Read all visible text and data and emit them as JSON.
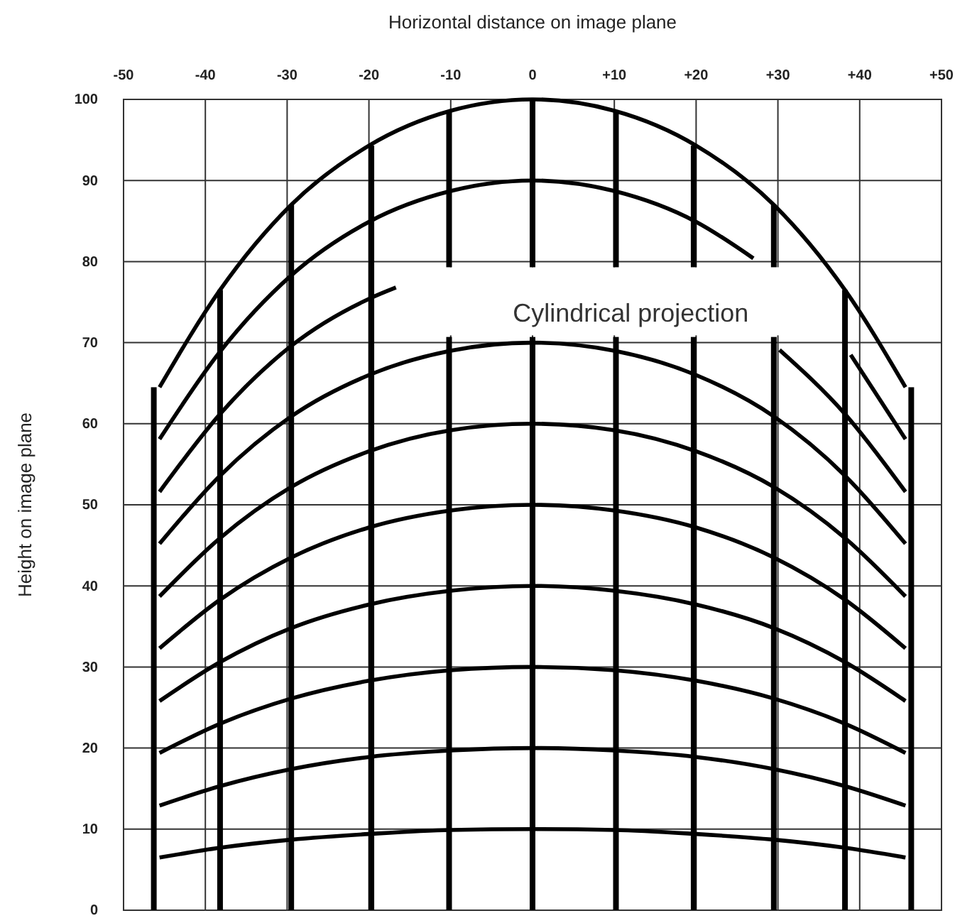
{
  "chart_data": {
    "type": "line",
    "xlabel": "Horizontal distance on image plane",
    "ylabel": "Height on image plane",
    "annotations": [
      "Cylindrical projection"
    ],
    "xlim": [
      -50,
      50
    ],
    "ylim": [
      0,
      100
    ],
    "xticks": [
      -50,
      -40,
      -30,
      -20,
      -10,
      0,
      {
        "value": 10,
        "label": "+10"
      },
      {
        "value": 20,
        "label": "+20"
      },
      {
        "value": 30,
        "label": "+30"
      },
      {
        "value": 40,
        "label": "+40"
      },
      {
        "value": 50,
        "label": "+50"
      }
    ],
    "yticks": [
      0,
      10,
      20,
      30,
      40,
      50,
      60,
      70,
      80,
      90,
      100
    ],
    "grid": true,
    "series": [
      {
        "color": "#000000",
        "x": [
          -45.6,
          -38.2,
          -29.5,
          -20,
          -10,
          0,
          10,
          20,
          29.5,
          38.2,
          45.6
        ],
        "values": [
          6.5,
          7.7,
          8.7,
          9.4,
          9.9,
          10,
          9.9,
          9.4,
          8.7,
          7.7,
          6.5
        ]
      },
      {
        "color": "#000000",
        "x": [
          -45.6,
          -38.2,
          -29.5,
          -20,
          -10,
          0,
          10,
          20,
          29.5,
          38.2,
          45.6
        ],
        "values": [
          12.9,
          15.3,
          17.4,
          18.9,
          19.7,
          20,
          19.7,
          18.9,
          17.4,
          15.3,
          12.9
        ]
      },
      {
        "color": "#000000",
        "x": [
          -45.6,
          -38.2,
          -29.5,
          -20,
          -10,
          0,
          10,
          20,
          29.5,
          38.2,
          45.6
        ],
        "values": [
          19.4,
          23,
          26.1,
          28.3,
          29.6,
          30,
          29.6,
          28.3,
          26.1,
          23,
          19.4
        ]
      },
      {
        "color": "#000000",
        "x": [
          -45.6,
          -38.2,
          -29.5,
          -20,
          -10,
          0,
          10,
          20,
          29.5,
          38.2,
          45.6
        ],
        "values": [
          25.8,
          30.6,
          34.8,
          37.7,
          39.4,
          40,
          39.4,
          37.7,
          34.8,
          30.6,
          25.8
        ]
      },
      {
        "color": "#000000",
        "x": [
          -45.6,
          -38.2,
          -29.5,
          -20,
          -10,
          0,
          10,
          20,
          29.5,
          38.2,
          45.6
        ],
        "values": [
          32.3,
          38.3,
          43.5,
          47.2,
          49.3,
          50,
          49.3,
          47.2,
          43.5,
          38.3,
          32.3
        ]
      },
      {
        "color": "#000000",
        "x": [
          -45.6,
          -38.2,
          -29.5,
          -20,
          -10,
          0,
          10,
          20,
          29.5,
          38.2,
          45.6
        ],
        "values": [
          38.7,
          45.9,
          52.2,
          56.6,
          59.2,
          60,
          59.2,
          56.6,
          52.2,
          45.9,
          38.7
        ]
      },
      {
        "color": "#000000",
        "x": [
          -45.6,
          -38.2,
          -29.5,
          -20,
          -10,
          0,
          10,
          20,
          29.5,
          38.2,
          45.6
        ],
        "values": [
          45.2,
          53.6,
          60.9,
          66,
          69,
          70,
          69,
          66,
          60.9,
          53.6,
          45.2
        ]
      },
      {
        "color": "#000000",
        "x": [
          -45.6,
          -38.2,
          -29.5,
          -20,
          -16.7
        ],
        "values": [
          51.6,
          61.2,
          69.6,
          75.4,
          76.8
        ]
      },
      {
        "color": "#000000",
        "x": [
          30.2,
          38.2,
          45.6
        ],
        "values": [
          69.1,
          61.2,
          51.6
        ]
      },
      {
        "color": "#000000",
        "x": [
          -45.6,
          -38.2,
          -29.5,
          -20,
          -10,
          0,
          10,
          20,
          27
        ],
        "values": [
          58.1,
          68.9,
          78.3,
          84.9,
          88.7,
          90,
          88.7,
          84.9,
          80.4
        ]
      },
      {
        "color": "#000000",
        "x": [
          38.9,
          45.6
        ],
        "values": [
          68.5,
          58.1
        ]
      },
      {
        "color": "#000000",
        "x": [
          -45.6,
          -38.2,
          -29.5,
          -20,
          -10,
          0,
          10,
          20,
          29.5,
          38.2,
          45.6
        ],
        "values": [
          64.5,
          76.5,
          87,
          94.3,
          98.6,
          100,
          98.6,
          94.3,
          87,
          76.5,
          64.5
        ]
      },
      {
        "type": "bar",
        "color": "#000000",
        "x": [
          -46.3,
          -38.2,
          -29.5,
          -19.7,
          -10.2,
          0,
          10.2,
          19.7,
          29.5,
          38.2,
          46.3
        ],
        "values": [
          64.5,
          76.5,
          87,
          94.3,
          70.7,
          70.7,
          70.7,
          70.7,
          70.7,
          76.5,
          64.5
        ]
      },
      {
        "type": "bar",
        "color": "#000000",
        "x": [
          -10.2,
          0,
          10.2,
          19.7,
          29.5
        ],
        "base": [
          79.3,
          79.3,
          79.3,
          79.3,
          79.3
        ],
        "values": [
          19.3,
          20.7,
          19.3,
          15,
          7.7
        ]
      }
    ]
  }
}
